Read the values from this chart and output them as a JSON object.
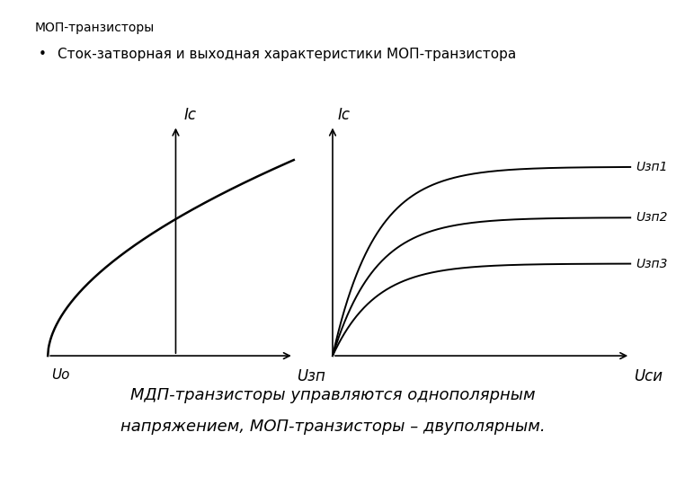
{
  "title": "МОП-транзисторы",
  "bullet": "Сток-затворная и выходная характеристики МОП-транзистора",
  "footer_line1": "МДП-транзисторы управляются однополярным",
  "footer_line2": "напряжением, МОП-транзисторы – двуполярным.",
  "left_label_y": "Iс",
  "left_label_x": "Uзп",
  "left_label_u0": "Uо",
  "right_label_y": "Iс",
  "right_label_x": "Uси",
  "right_curves": [
    {
      "label": "Uзп1",
      "saturation": 0.82
    },
    {
      "label": "Uзп2",
      "saturation": 0.6
    },
    {
      "label": "Uзп3",
      "saturation": 0.4
    }
  ],
  "bg_color": "#ffffff",
  "line_color": "#000000",
  "font_color": "#000000",
  "title_fontsize": 10,
  "bullet_fontsize": 11,
  "footer_fontsize": 13,
  "axis_label_fontsize": 12,
  "curve_label_fontsize": 10
}
